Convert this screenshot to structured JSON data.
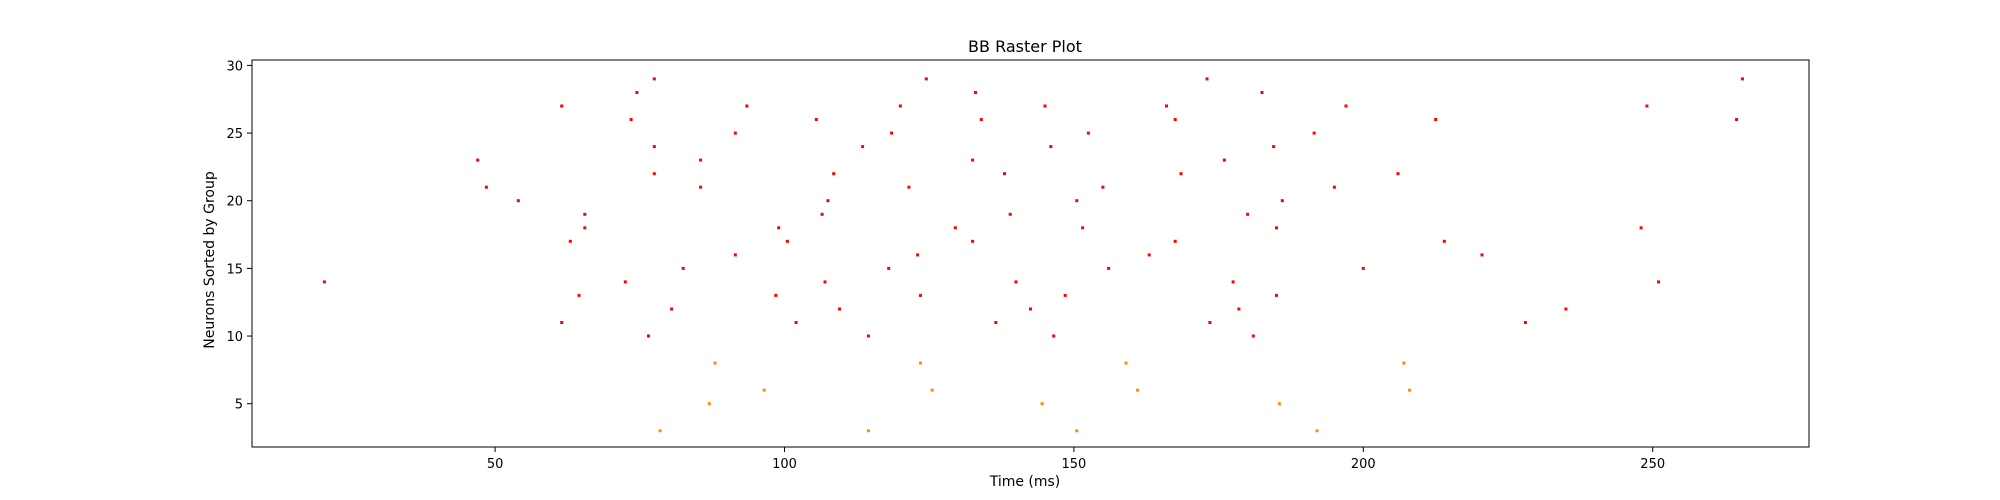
{
  "chart_data": {
    "type": "scatter",
    "title": "BB Raster Plot",
    "xlabel": "Time (ms)",
    "ylabel": "Neurons Sorted by Group",
    "xlim": [
      8,
      277
    ],
    "ylim": [
      1.8,
      30.4
    ],
    "xticks": [
      50,
      100,
      150,
      200,
      250
    ],
    "yticks": [
      5,
      10,
      15,
      20,
      25,
      30
    ],
    "grid": false,
    "series": [
      {
        "color": "#ff8c00",
        "points": [
          [
            78.5,
            3
          ],
          [
            87,
            5
          ],
          [
            88,
            8
          ],
          [
            96.5,
            6
          ],
          [
            114.5,
            3
          ],
          [
            123.5,
            8
          ],
          [
            125.5,
            6
          ],
          [
            144.5,
            5
          ],
          [
            150.5,
            3
          ],
          [
            159,
            8
          ],
          [
            161,
            6
          ],
          [
            185.5,
            5
          ],
          [
            192,
            3
          ],
          [
            207,
            8
          ],
          [
            208,
            6
          ]
        ]
      },
      {
        "color": "#ff0000",
        "points": [
          [
            20.5,
            14
          ],
          [
            47,
            23
          ],
          [
            48.5,
            21
          ],
          [
            54,
            20
          ],
          [
            61.5,
            11
          ],
          [
            61.5,
            27
          ],
          [
            63,
            17
          ],
          [
            64.5,
            13
          ],
          [
            65.5,
            18
          ],
          [
            65.5,
            19
          ],
          [
            72.5,
            14
          ],
          [
            73.5,
            26
          ],
          [
            74.5,
            28
          ],
          [
            76.5,
            10
          ],
          [
            77.5,
            22
          ],
          [
            77.5,
            24
          ],
          [
            77.5,
            29
          ],
          [
            80.5,
            12
          ],
          [
            82.5,
            15
          ],
          [
            85.5,
            21
          ],
          [
            85.5,
            23
          ],
          [
            91.5,
            16
          ],
          [
            91.5,
            25
          ],
          [
            93.5,
            27
          ],
          [
            98.5,
            13
          ],
          [
            99,
            18
          ],
          [
            100.5,
            17
          ],
          [
            102,
            11
          ],
          [
            105.5,
            26
          ],
          [
            106.5,
            19
          ],
          [
            107,
            14
          ],
          [
            107.5,
            20
          ],
          [
            108.5,
            22
          ],
          [
            109.5,
            12
          ],
          [
            113.5,
            24
          ],
          [
            114.5,
            10
          ],
          [
            118,
            15
          ],
          [
            118.5,
            25
          ],
          [
            120,
            27
          ],
          [
            121.5,
            21
          ],
          [
            123,
            16
          ],
          [
            123.5,
            13
          ],
          [
            124.5,
            29
          ],
          [
            129.5,
            18
          ],
          [
            132.5,
            17
          ],
          [
            132.5,
            23
          ],
          [
            133,
            28
          ],
          [
            134,
            26
          ],
          [
            136.5,
            11
          ],
          [
            138,
            22
          ],
          [
            139,
            19
          ],
          [
            140,
            14
          ],
          [
            142.5,
            12
          ],
          [
            145,
            27
          ],
          [
            146,
            24
          ],
          [
            146.5,
            10
          ],
          [
            148.5,
            13
          ],
          [
            150.5,
            20
          ],
          [
            151.5,
            18
          ],
          [
            152.5,
            25
          ],
          [
            155,
            21
          ],
          [
            156,
            15
          ],
          [
            163,
            16
          ],
          [
            166,
            27
          ],
          [
            167.5,
            26
          ],
          [
            167.5,
            17
          ],
          [
            168.5,
            22
          ],
          [
            173,
            29
          ],
          [
            173.5,
            11
          ],
          [
            176,
            23
          ],
          [
            177.5,
            14
          ],
          [
            178.5,
            12
          ],
          [
            180,
            19
          ],
          [
            181,
            10
          ],
          [
            182.5,
            28
          ],
          [
            184.5,
            24
          ],
          [
            185,
            18
          ],
          [
            185,
            13
          ],
          [
            186,
            20
          ],
          [
            191.5,
            25
          ],
          [
            195,
            21
          ],
          [
            197,
            27
          ],
          [
            200,
            15
          ],
          [
            206,
            22
          ],
          [
            212.5,
            26
          ],
          [
            214,
            17
          ],
          [
            220.5,
            16
          ],
          [
            228,
            11
          ],
          [
            235,
            12
          ],
          [
            248,
            18
          ],
          [
            249,
            27
          ],
          [
            251,
            14
          ],
          [
            264.5,
            26
          ],
          [
            265.5,
            29
          ]
        ]
      }
    ]
  }
}
